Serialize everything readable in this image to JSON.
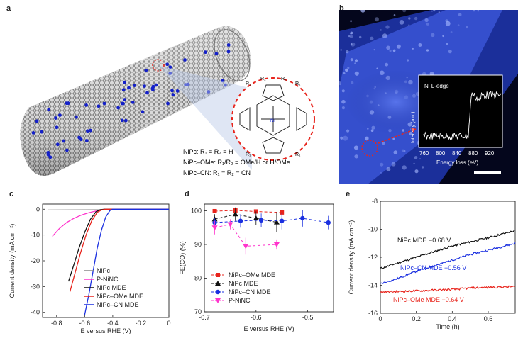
{
  "figure": {
    "panel_a": {
      "letter": "a",
      "labels": [
        "NiPc: R₁ = R₂ = H",
        "NiPc–OMe: R₁/R₂ = OMe/H or H/OMe",
        "NiPc–CN: R₁ = R₂ = CN"
      ],
      "structure_labels": {
        "r1": "R₁",
        "r2": "R₂",
        "n": "N",
        "ni": "Ni"
      }
    },
    "panel_b": {
      "letter": "b",
      "inset_title": "Ni L-edge",
      "inset_ylabel": "Intensity (a.u.)",
      "inset_xlabel": "Energy loss (eV)",
      "inset_xticks": [
        "760",
        "800",
        "840",
        "880",
        "920"
      ]
    },
    "panel_c": {
      "letter": "c"
    },
    "panel_d": {
      "letter": "d"
    },
    "panel_e": {
      "letter": "e"
    }
  },
  "colors": {
    "black": "#111111",
    "pink": "#ff33cc",
    "red": "#e8241c",
    "blue": "#1a2fe0",
    "cnt_gray": "#8a8a8a",
    "dot_blue": "#1420c8"
  },
  "chart_data": [
    {
      "type": "line",
      "panel": "c",
      "xlabel": "E versus RHE (V)",
      "ylabel": "Current density (mA cm⁻²)",
      "xlim": [
        -0.9,
        0.0
      ],
      "ylim": [
        -42,
        2
      ],
      "xticks": [
        "-0.8",
        "-0.6",
        "-0.4",
        "-0.2",
        "0"
      ],
      "yticks": [
        "0",
        "-10",
        "-20",
        "-30",
        "-40"
      ],
      "legend_position": "bottom-right",
      "series": [
        {
          "name": "NiPc",
          "color": "#888888",
          "x": [
            -0.86,
            -0.4,
            0.0
          ],
          "y": [
            -0.3,
            -0.2,
            0.0
          ]
        },
        {
          "name": "P-NiNC",
          "color": "#ff33cc",
          "x": [
            -0.83,
            -0.78,
            -0.73,
            -0.68,
            -0.63,
            -0.58,
            -0.53,
            -0.48,
            -0.44,
            0.0
          ],
          "y": [
            -10.5,
            -7.5,
            -5.2,
            -3.6,
            -2.4,
            -1.5,
            -0.8,
            -0.3,
            0,
            0
          ]
        },
        {
          "name": "NiPc MDE",
          "color": "#111111",
          "x": [
            -0.715,
            -0.68,
            -0.64,
            -0.6,
            -0.56,
            -0.52,
            -0.49,
            -0.46,
            -0.44,
            0.0
          ],
          "y": [
            -28,
            -22,
            -15,
            -9,
            -4,
            -1,
            -0.2,
            0,
            0,
            0
          ]
        },
        {
          "name": "NiPc–OMe MDE",
          "color": "#e8241c",
          "x": [
            -0.705,
            -0.67,
            -0.63,
            -0.59,
            -0.55,
            -0.51,
            -0.48,
            -0.45,
            -0.43,
            0.0
          ],
          "y": [
            -32,
            -25,
            -17,
            -10,
            -4.5,
            -1.2,
            -0.3,
            0,
            0,
            0
          ]
        },
        {
          "name": "NiPc–CN MDE",
          "color": "#1a2fe0",
          "x": [
            -0.6,
            -0.57,
            -0.54,
            -0.51,
            -0.48,
            -0.45,
            -0.42,
            -0.4,
            0.0
          ],
          "y": [
            -41,
            -33,
            -24,
            -15,
            -8,
            -3,
            -0.5,
            0,
            0
          ]
        }
      ]
    },
    {
      "type": "scatter",
      "panel": "d",
      "xlabel": "E versus RHE (V)",
      "ylabel": "FE(CO) (%)",
      "xlim": [
        -0.7,
        -0.45
      ],
      "ylim": [
        70,
        102
      ],
      "xticks": [
        "-0.7",
        "-0.6",
        "-0.5"
      ],
      "yticks": [
        "70",
        "80",
        "90",
        "100"
      ],
      "legend_position": "bottom-left",
      "series": [
        {
          "name": "NiPc–OMe MDE",
          "color": "#e8241c",
          "marker": "square",
          "x": [
            -0.68,
            -0.64,
            -0.6,
            -0.55
          ],
          "y": [
            99.9,
            100.1,
            99.8,
            99.5
          ],
          "err": [
            0.3,
            0.5,
            0.4,
            0.6
          ]
        },
        {
          "name": "NiPc MDE",
          "color": "#111111",
          "marker": "triangle",
          "x": [
            -0.68,
            -0.64,
            -0.6,
            -0.56
          ],
          "y": [
            97.5,
            99.0,
            97.8,
            96.6
          ],
          "err": [
            1.5,
            2.0,
            2.0,
            3.0
          ]
        },
        {
          "name": "NiPc–CN MDE",
          "color": "#1a2fe0",
          "marker": "circle",
          "x": [
            -0.68,
            -0.63,
            -0.59,
            -0.55,
            -0.51,
            -0.46
          ],
          "y": [
            96.5,
            97.0,
            97.2,
            97.0,
            97.8,
            96.5
          ],
          "err": [
            1.5,
            2.0,
            2.0,
            2.5,
            2.5,
            2.0
          ]
        },
        {
          "name": "P-NiNC",
          "color": "#ff33cc",
          "marker": "triangle-down",
          "x": [
            -0.68,
            -0.65,
            -0.62,
            -0.56
          ],
          "y": [
            95.0,
            96.0,
            89.5,
            90.0
          ],
          "err": [
            2.0,
            1.5,
            2.5,
            1.5
          ]
        }
      ]
    },
    {
      "type": "line",
      "panel": "e",
      "xlabel": "Time (h)",
      "ylabel": "Current density (mA cm⁻²)",
      "xlim": [
        0,
        0.75
      ],
      "ylim": [
        -16,
        -8
      ],
      "xticks": [
        "0",
        "0.2",
        "0.4",
        "0.6"
      ],
      "yticks": [
        "-8",
        "-10",
        "-12",
        "-14",
        "-16"
      ],
      "series": [
        {
          "name": "NiPc MDE −0.68 V",
          "color": "#111111",
          "x": [
            0,
            0.1,
            0.2,
            0.3,
            0.4,
            0.5,
            0.6,
            0.75
          ],
          "y": [
            -12.8,
            -12.4,
            -12.0,
            -11.6,
            -11.2,
            -10.9,
            -10.6,
            -10.1
          ]
        },
        {
          "name": "NiPc–CN MDE −0.56 V",
          "color": "#1a2fe0",
          "x": [
            0,
            0.1,
            0.2,
            0.3,
            0.4,
            0.5,
            0.6,
            0.75
          ],
          "y": [
            -13.9,
            -13.5,
            -13.0,
            -12.6,
            -12.2,
            -11.8,
            -11.5,
            -11.0
          ]
        },
        {
          "name": "NiPc–OMe MDE −0.64 V",
          "color": "#e8241c",
          "x": [
            0,
            0.1,
            0.2,
            0.3,
            0.4,
            0.5,
            0.6,
            0.75
          ],
          "y": [
            -14.5,
            -14.45,
            -14.4,
            -14.35,
            -14.3,
            -14.2,
            -14.15,
            -14.1
          ]
        }
      ]
    }
  ]
}
